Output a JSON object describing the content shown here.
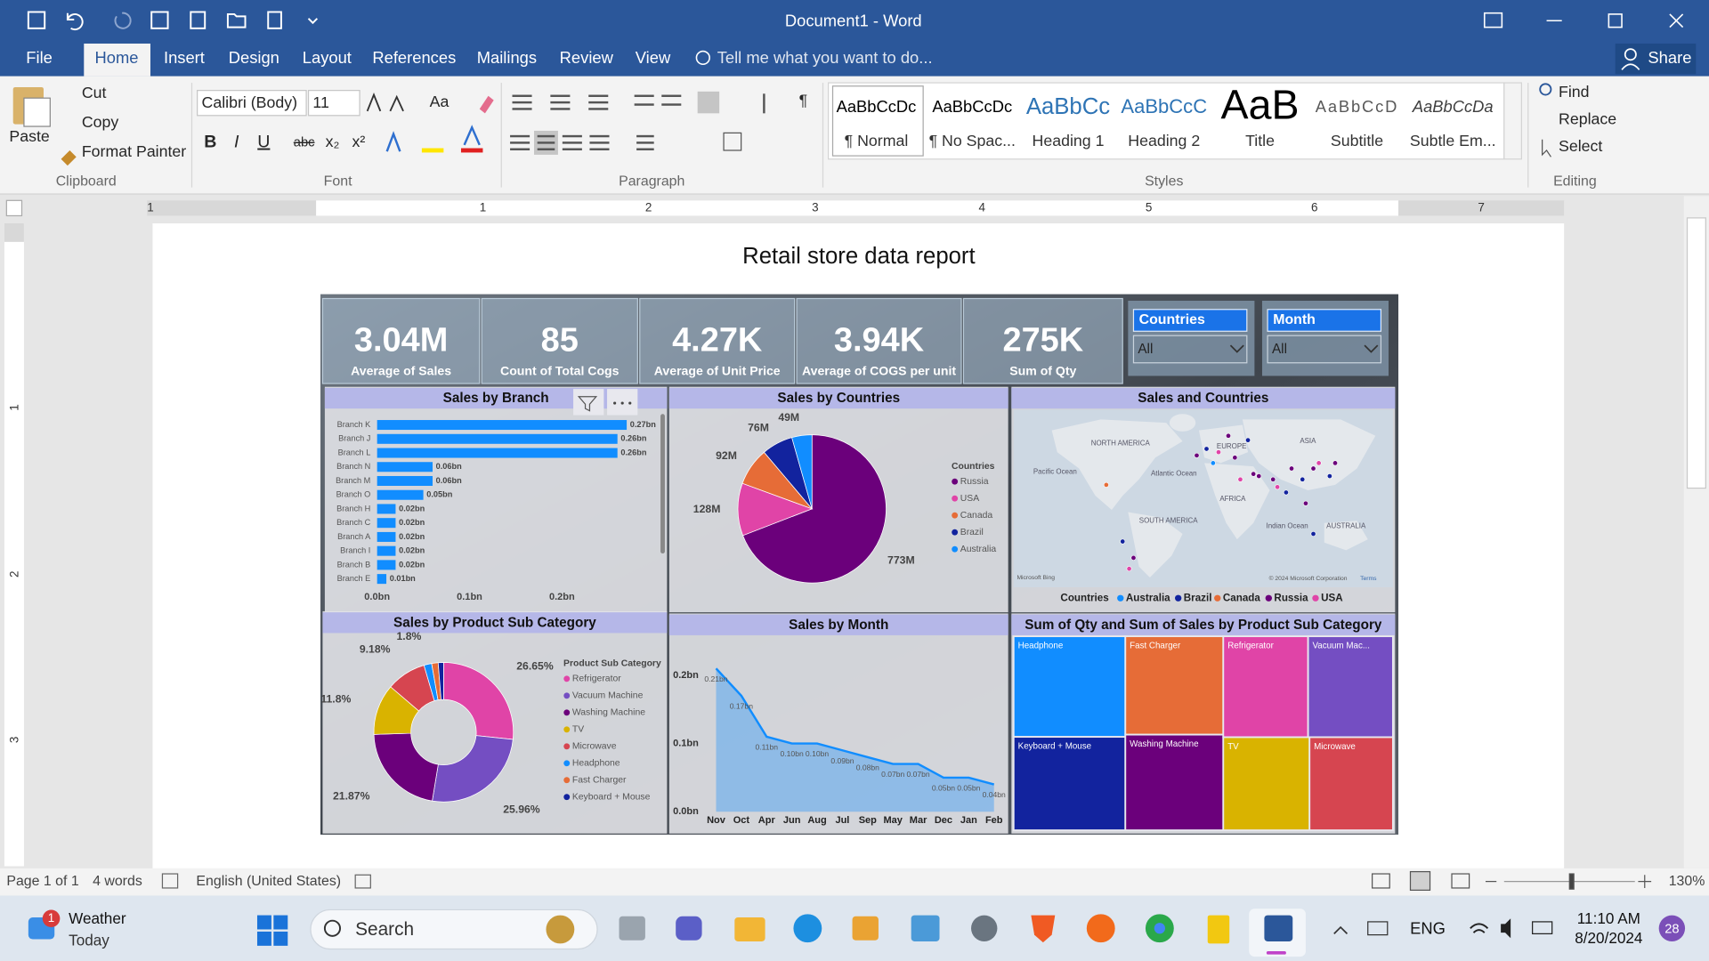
{
  "window": {
    "title": "Document1 - Word"
  },
  "tabs": [
    "File",
    "Home",
    "Insert",
    "Design",
    "Layout",
    "References",
    "Mailings",
    "Review",
    "View"
  ],
  "tell_me": "Tell me what you want to do...",
  "share": "Share",
  "ribbon": {
    "clipboard": {
      "paste": "Paste",
      "cut": "Cut",
      "copy": "Copy",
      "format_painter": "Format Painter",
      "label": "Clipboard"
    },
    "font": {
      "name": "Calibri (Body)",
      "size": "11",
      "buttons": [
        "B",
        "I",
        "U",
        "abc"
      ],
      "subscript": "x₂",
      "superscript": "x²",
      "change_case": "Aa",
      "label": "Font"
    },
    "paragraph": {
      "show_marks": "¶",
      "label": "Paragraph"
    },
    "styles": {
      "items": [
        {
          "preview": "AaBbCcDc",
          "name": "¶ Normal"
        },
        {
          "preview": "AaBbCcDc",
          "name": "¶ No Spac..."
        },
        {
          "preview": "AaBbCc",
          "name": "Heading 1"
        },
        {
          "preview": "AaBbCcC",
          "name": "Heading 2"
        },
        {
          "preview": "AaB",
          "name": "Title"
        },
        {
          "preview": "AaBbCcD",
          "name": "Subtitle"
        },
        {
          "preview": "AaBbCcDa",
          "name": "Subtle Em..."
        }
      ],
      "label": "Styles"
    },
    "editing": {
      "find": "Find",
      "replace": "Replace",
      "select": "Select",
      "label": "Editing"
    }
  },
  "ruler": {
    "horizontal": [
      1,
      1,
      2,
      3,
      4,
      5,
      6,
      7
    ],
    "vertical": [
      1,
      2,
      3
    ]
  },
  "document": {
    "heading": "Retail store data report"
  },
  "dashboard": {
    "kpis": [
      {
        "value": "3.04M",
        "label": "Average of Sales"
      },
      {
        "value": "85",
        "label": "Count of Total Cogs"
      },
      {
        "value": "4.27K",
        "label": "Average of Unit Price"
      },
      {
        "value": "3.94K",
        "label": "Average of COGS per unit"
      },
      {
        "value": "275K",
        "label": "Sum of Qty"
      }
    ],
    "slicers": [
      {
        "title": "Countries",
        "value": "All"
      },
      {
        "title": "Month",
        "value": "All"
      }
    ]
  },
  "chart_data": [
    {
      "type": "bar",
      "title": "Sales by Branch",
      "categories": [
        "Branch K",
        "Branch J",
        "Branch L",
        "Branch N",
        "Branch M",
        "Branch O",
        "Branch H",
        "Branch C",
        "Branch A",
        "Branch I",
        "Branch B",
        "Branch E"
      ],
      "values": [
        0.27,
        0.26,
        0.26,
        0.06,
        0.06,
        0.05,
        0.02,
        0.02,
        0.02,
        0.02,
        0.02,
        0.01
      ],
      "value_labels": [
        "0.27bn",
        "0.26bn",
        "0.26bn",
        "0.06bn",
        "0.06bn",
        "0.05bn",
        "0.02bn",
        "0.02bn",
        "0.02bn",
        "0.02bn",
        "0.02bn",
        "0.01bn"
      ],
      "color": "#118dff",
      "xlim": [
        0,
        0.27
      ],
      "xticks": [
        {
          "value": 0,
          "label": "0.0bn"
        },
        {
          "value": 0.1,
          "label": "0.1bn"
        },
        {
          "value": 0.2,
          "label": "0.2bn"
        }
      ]
    },
    {
      "type": "pie",
      "title": "Sales by Countries",
      "legend_title": "Countries",
      "categories": [
        "Russia",
        "USA",
        "Canada",
        "Brazil",
        "Australia"
      ],
      "values": [
        773,
        128,
        92,
        76,
        49
      ],
      "value_labels": [
        "773M",
        "128M",
        "92M",
        "76M",
        "49M"
      ],
      "colors": [
        "#6b007b",
        "#e044a7",
        "#e66c37",
        "#12239e",
        "#118dff"
      ]
    },
    {
      "type": "map",
      "title": "Sales and Countries",
      "legend_title": "Countries",
      "categories": [
        "Australia",
        "Brazil",
        "Canada",
        "Russia",
        "USA"
      ],
      "colors": [
        "#118dff",
        "#12239e",
        "#e66c37",
        "#6b007b",
        "#e044a7"
      ],
      "labels": [
        "NORTH AMERICA",
        "Pacific Ocean",
        "Atlantic Ocean",
        "EUROPE",
        "ASIA",
        "AFRICA",
        "SOUTH AMERICA",
        "Indian Ocean",
        "AUSTRALIA"
      ],
      "credits": [
        "Microsoft Bing",
        "© 2024 Microsoft Corporation",
        "Terms"
      ]
    },
    {
      "type": "donut",
      "title": "Sales by Product Sub Category",
      "legend_title": "Product Sub Category",
      "categories": [
        "Refrigerator",
        "Vacuum Machine",
        "Washing Machine",
        "TV",
        "Microwave",
        "Headphone",
        "Fast Charger",
        "Keyboard + Mouse"
      ],
      "values": [
        26.65,
        25.96,
        21.87,
        11.8,
        9.18,
        1.8,
        1.5,
        1.24
      ],
      "value_labels": [
        "26.65%",
        "25.96%",
        "21.87%",
        "11.8%",
        "9.18%",
        "1.8%",
        null,
        null
      ],
      "colors": [
        "#e044a7",
        "#744ec2",
        "#6b007b",
        "#d9b300",
        "#d64550",
        "#118dff",
        "#e66c37",
        "#12239e"
      ]
    },
    {
      "type": "area",
      "title": "Sales by Month",
      "categories": [
        "Nov",
        "Oct",
        "Apr",
        "Jun",
        "Aug",
        "Jul",
        "Sep",
        "May",
        "Mar",
        "Dec",
        "Jan",
        "Feb"
      ],
      "values": [
        0.21,
        0.17,
        0.11,
        0.1,
        0.1,
        0.09,
        0.08,
        0.07,
        0.07,
        0.05,
        0.05,
        0.04
      ],
      "value_labels": [
        "0.21bn",
        "0.17bn",
        "0.11bn",
        "0.10bn",
        "0.10bn",
        "0.09bn",
        "0.08bn",
        "0.07bn",
        "0.07bn",
        "0.05bn",
        "0.05bn",
        "0.04bn"
      ],
      "color": "#118dff",
      "ylim": [
        0,
        0.23
      ],
      "yticks": [
        {
          "value": 0,
          "label": "0.0bn"
        },
        {
          "value": 0.1,
          "label": "0.1bn"
        },
        {
          "value": 0.2,
          "label": "0.2bn"
        }
      ]
    },
    {
      "type": "treemap",
      "title": "Sum of Qty and Sum of Sales by Product Sub Category",
      "categories": [
        "Headphone",
        "Keyboard + Mouse",
        "Fast Charger",
        "Washing Machine",
        "Refrigerator",
        "Vacuum Mac...",
        "TV",
        "Microwave"
      ],
      "values": [
        42000,
        39000,
        36000,
        35000,
        32000,
        32000,
        30000,
        29000
      ],
      "colors": [
        "#118dff",
        "#12239e",
        "#e66c37",
        "#6b007b",
        "#e044a7",
        "#744ec2",
        "#d9b300",
        "#d64550"
      ]
    }
  ],
  "status_bar": {
    "page": "Page 1 of 1",
    "words": "4 words",
    "language": "English (United States)",
    "zoom": "130%"
  },
  "taskbar": {
    "weather_badge": "1",
    "weather": "Weather",
    "weather_sub": "Today",
    "search": "Search",
    "language": "ENG",
    "time": "11:10 AM",
    "date": "8/20/2024",
    "notifications": "28"
  }
}
